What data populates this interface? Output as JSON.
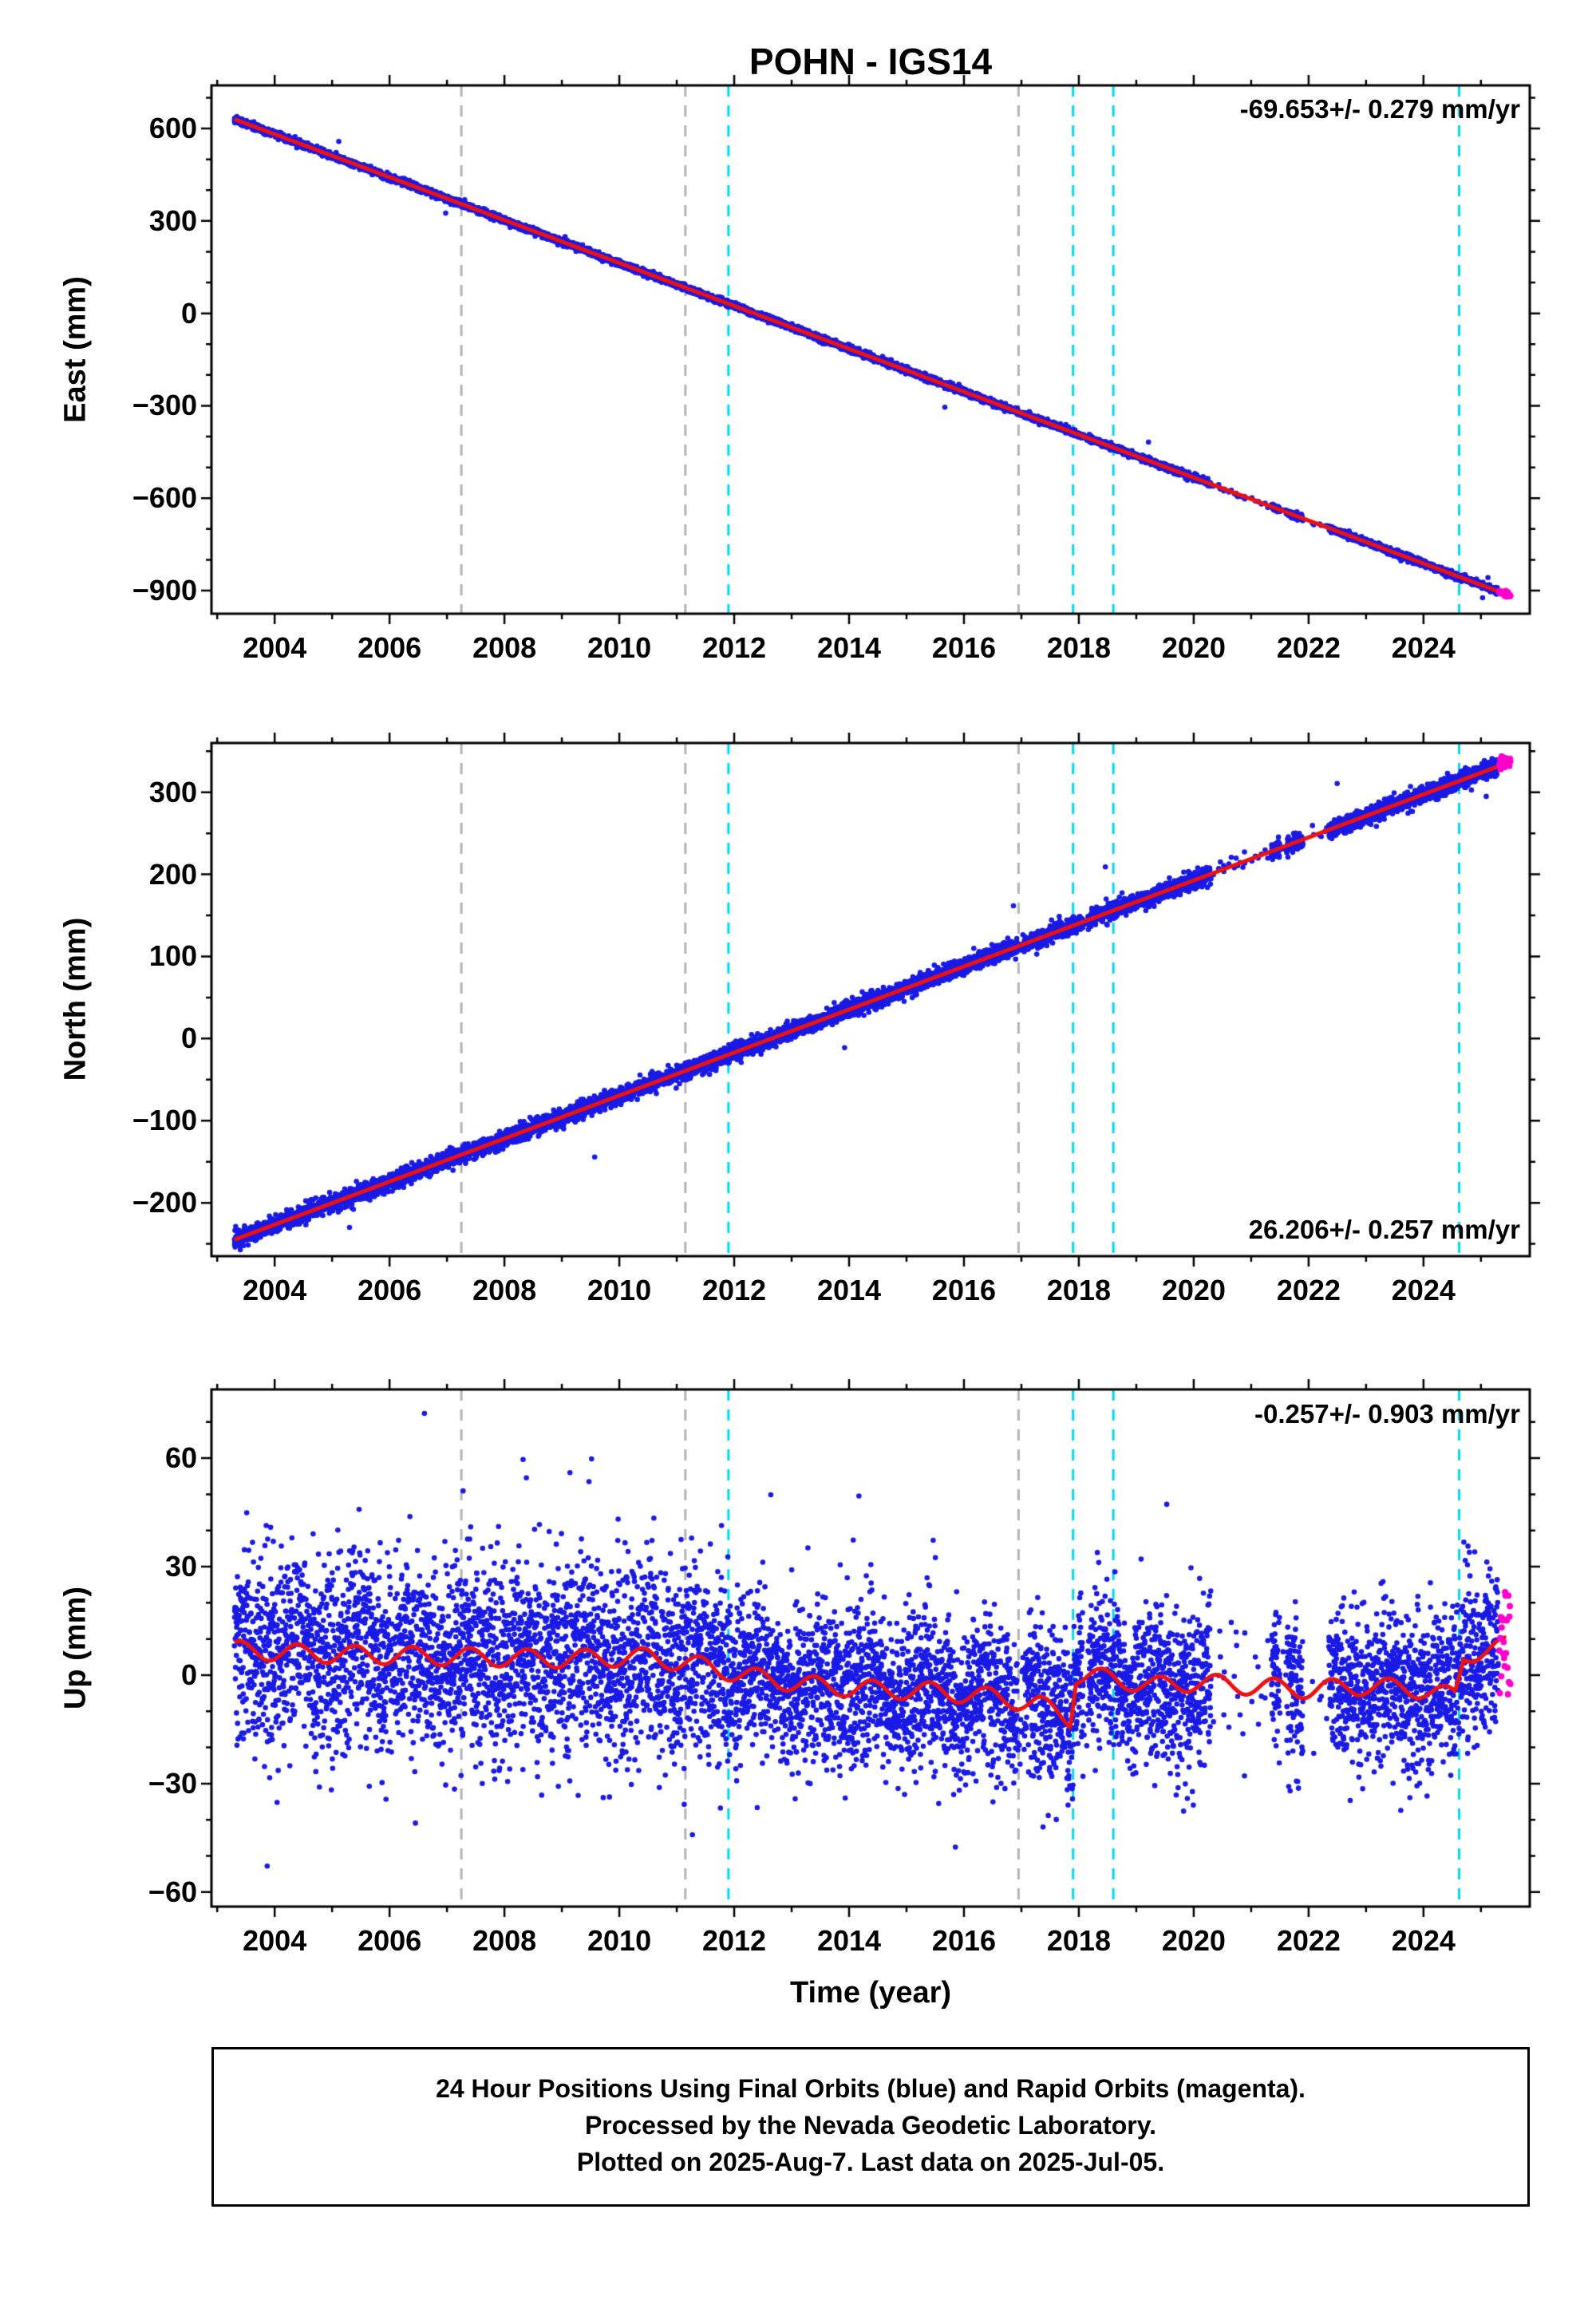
{
  "title": "POHN - IGS14",
  "footer": {
    "line1": "24 Hour Positions Using Final Orbits (blue) and Rapid Orbits (magenta).",
    "line2": "Processed by the Nevada Geodetic Laboratory.",
    "line3": "Plotted on 2025-Aug-7. Last data on 2025-Jul-05."
  },
  "colors": {
    "final_orbits_blue": "#1a1ae6",
    "rapid_orbits_magenta": "#ff00cc",
    "trend_red": "#ee1111",
    "event_gray": "#b3b3b3",
    "event_cyan": "#00d9ef",
    "frame_black": "#000000",
    "background": "#ffffff"
  },
  "chart_data": {
    "type": "scatter",
    "xlabel": "Time (year)",
    "xlim": [
      2002.9,
      2025.85
    ],
    "x_major_ticks": [
      2004,
      2006,
      2008,
      2010,
      2012,
      2014,
      2016,
      2018,
      2020,
      2022,
      2024
    ],
    "x_minor_interval": 1,
    "data_start": 2003.3,
    "final_orbits_end": 2025.3,
    "rapid_orbits_start": 2025.32,
    "rapid_orbits_end": 2025.52,
    "event_lines": {
      "gray_dashed_years": [
        2007.25,
        2011.15,
        2016.95
      ],
      "cyan_dashed_years": [
        2011.9,
        2017.9,
        2018.6,
        2024.62
      ]
    },
    "gaps": [
      [
        2016.93,
        2017.05,
        0.15
      ],
      [
        2018.08,
        2018.16,
        0.2
      ],
      [
        2020.3,
        2021.35,
        0.07
      ],
      [
        2021.5,
        2021.62,
        0.1
      ],
      [
        2021.9,
        2022.35,
        0.04
      ]
    ],
    "panels": [
      {
        "id": "east",
        "ylabel": "East (mm)",
        "rate_label": "-69.653+/- 0.279 mm/yr",
        "rate_mm_per_yr": -69.653,
        "rate_uncertainty_mm_per_yr": 0.279,
        "ylim": [
          -975,
          740
        ],
        "y_major_ticks": [
          600,
          300,
          0,
          -300,
          -600,
          -900
        ],
        "y_minor_interval": 100,
        "trend": {
          "t0": 2003.3,
          "v0": 630,
          "slope": -69.653
        },
        "noise_sigma": 5,
        "outlier_prob": 0.0015,
        "outlier_max": 80,
        "seed": 11
      },
      {
        "id": "north",
        "ylabel": "North (mm)",
        "rate_label": "26.206+/- 0.257 mm/yr",
        "rate_mm_per_yr": 26.206,
        "rate_uncertainty_mm_per_yr": 0.257,
        "ylim": [
          -265,
          360
        ],
        "y_major_ticks": [
          300,
          200,
          100,
          0,
          -100,
          -200
        ],
        "y_minor_interval": 50,
        "trend": {
          "t0": 2003.3,
          "v0": -245,
          "slope": 26.206
        },
        "noise_sigma": 5,
        "outlier_prob": 0.0015,
        "outlier_max": 70,
        "seed": 22
      },
      {
        "id": "up",
        "ylabel": "Up (mm)",
        "rate_label": "-0.257+/- 0.903 mm/yr",
        "rate_mm_per_yr": -0.257,
        "rate_uncertainty_mm_per_yr": 0.903,
        "ylim": [
          -64,
          79
        ],
        "y_major_ticks": [
          60,
          30,
          0,
          -30,
          -60
        ],
        "y_minor_interval": 10,
        "mean_control": [
          [
            2003.3,
            7
          ],
          [
            2004.5,
            6
          ],
          [
            2006.0,
            5.5
          ],
          [
            2007.5,
            5
          ],
          [
            2009.0,
            4.5
          ],
          [
            2010.5,
            5
          ],
          [
            2011.3,
            3
          ],
          [
            2011.9,
            1
          ],
          [
            2012.5,
            -1
          ],
          [
            2013.5,
            -3
          ],
          [
            2014.5,
            -4
          ],
          [
            2015.5,
            -4.5
          ],
          [
            2016.5,
            -6
          ],
          [
            2017.3,
            -8
          ],
          [
            2017.85,
            -12
          ],
          [
            2017.95,
            0
          ],
          [
            2018.6,
            -1
          ],
          [
            2019.3,
            -3
          ],
          [
            2020.0,
            -2
          ],
          [
            2021.0,
            -3
          ],
          [
            2022.0,
            -4
          ],
          [
            2023.0,
            -3
          ],
          [
            2024.0,
            -4
          ],
          [
            2024.55,
            -6
          ],
          [
            2024.7,
            5
          ],
          [
            2025.0,
            7
          ],
          [
            2025.45,
            8
          ]
        ],
        "seasonal_amplitude": 2.5,
        "seasonal_phase": 0.15,
        "noise_sigma": 10.5,
        "noise_sigma_early": 13,
        "sigma_change_year": 2011.9,
        "outlier_prob": 0.009,
        "outlier_max": 45,
        "extreme_prob": 0.0012,
        "extreme_max": 75,
        "seed": 33
      }
    ]
  }
}
